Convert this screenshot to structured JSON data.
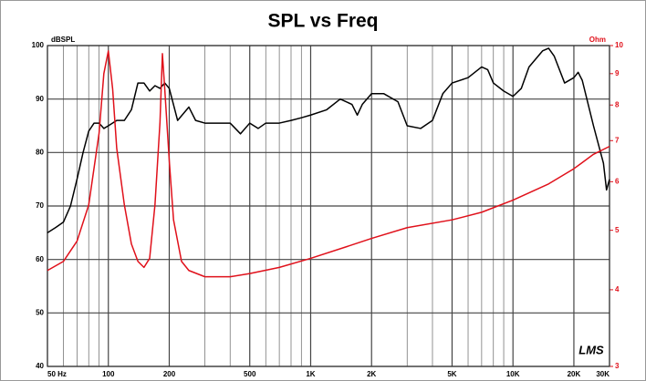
{
  "chart_data": {
    "type": "line",
    "title": "SPL vs Freq",
    "y_label": "dBSPL",
    "y2_label": "Ohm",
    "annotation": "LMS",
    "xscale": "log",
    "xlim": [
      50,
      30000
    ],
    "xticks": [
      {
        "value": 50,
        "label": "50 Hz"
      },
      100,
      200,
      500,
      {
        "value": 1000,
        "label": "1K"
      },
      {
        "value": 2000,
        "label": "2K"
      },
      {
        "value": 5000,
        "label": "5K"
      },
      {
        "value": 10000,
        "label": "10K"
      },
      {
        "value": 20000,
        "label": "20K"
      },
      {
        "value": 30000,
        "label": "30K"
      }
    ],
    "x_minor_ticks": [
      60,
      70,
      80,
      90,
      300,
      400,
      600,
      700,
      800,
      900,
      3000,
      4000,
      6000,
      7000,
      8000,
      9000
    ],
    "ylim": [
      40,
      100
    ],
    "yticks": [
      40,
      50,
      60,
      70,
      80,
      90,
      100
    ],
    "y2scale": "log",
    "y2lim": [
      3,
      10
    ],
    "y2ticks": [
      3,
      4,
      5,
      6,
      7,
      8,
      9,
      10
    ],
    "grid": true,
    "series": [
      {
        "name": "SPL",
        "color": "#000000",
        "x": [
          50,
          55,
          60,
          65,
          70,
          75,
          80,
          85,
          90,
          95,
          100,
          110,
          120,
          130,
          140,
          150,
          160,
          170,
          180,
          190,
          200,
          220,
          250,
          270,
          300,
          350,
          400,
          450,
          500,
          550,
          600,
          700,
          800,
          900,
          1000,
          1200,
          1400,
          1600,
          1700,
          1800,
          2000,
          2300,
          2700,
          3000,
          3500,
          4000,
          4500,
          5000,
          6000,
          7000,
          7500,
          8000,
          9000,
          10000,
          11000,
          12000,
          14000,
          15000,
          16000,
          18000,
          20000,
          21000,
          22000,
          25000,
          28000,
          29000,
          30000
        ],
        "values": [
          65,
          66,
          67,
          70,
          75,
          80,
          84,
          85.5,
          85.5,
          84.5,
          85,
          86,
          86,
          88,
          93,
          93,
          91.5,
          92.5,
          92,
          93,
          92,
          86,
          88.5,
          86,
          85.5,
          85.5,
          85.5,
          83.5,
          85.5,
          84.5,
          85.5,
          85.5,
          86,
          86.5,
          87,
          88,
          90,
          89,
          87,
          89,
          91,
          91,
          89.5,
          85,
          84.5,
          86,
          91,
          93,
          94,
          96,
          95.5,
          93,
          91.5,
          90.5,
          92,
          96,
          99,
          99.5,
          98,
          93,
          94,
          95,
          93.5,
          85,
          78,
          73,
          75
        ]
      },
      {
        "name": "Impedance",
        "color": "#e0101a",
        "axis": "y2",
        "x": [
          50,
          60,
          70,
          80,
          90,
          95,
          100,
          105,
          110,
          120,
          130,
          140,
          150,
          160,
          170,
          180,
          185,
          190,
          200,
          210,
          230,
          250,
          300,
          400,
          500,
          700,
          1000,
          1500,
          2000,
          3000,
          5000,
          7000,
          10000,
          15000,
          20000,
          25000,
          30000
        ],
        "values": [
          4.3,
          4.45,
          4.8,
          5.5,
          7.2,
          9,
          9.8,
          8.5,
          6.8,
          5.5,
          4.75,
          4.45,
          4.35,
          4.5,
          5.5,
          7.5,
          9.7,
          8.5,
          6.5,
          5.2,
          4.45,
          4.3,
          4.2,
          4.2,
          4.25,
          4.35,
          4.5,
          4.7,
          4.85,
          5.05,
          5.2,
          5.35,
          5.6,
          5.95,
          6.3,
          6.65,
          6.85
        ]
      }
    ]
  }
}
